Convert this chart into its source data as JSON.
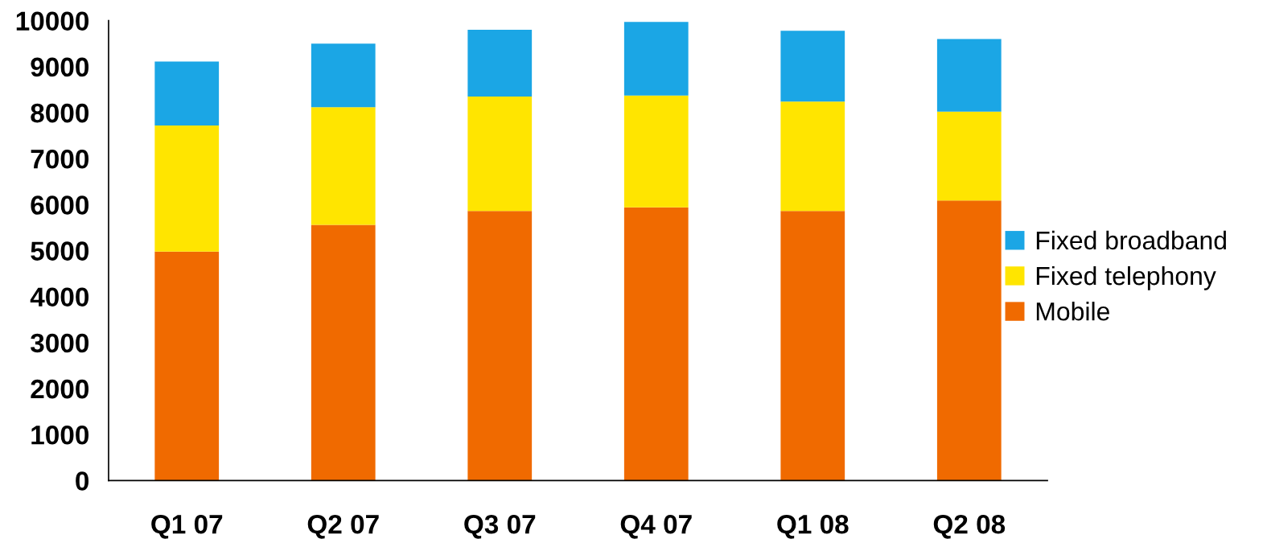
{
  "chart_data": {
    "type": "bar",
    "stacked": true,
    "categories": [
      "Q1 07",
      "Q2 07",
      "Q3 07",
      "Q4 07",
      "Q1 08",
      "Q2 08"
    ],
    "series": [
      {
        "name": "Mobile",
        "color": "#f06a00",
        "values": [
          4980,
          5560,
          5860,
          5940,
          5860,
          6090
        ]
      },
      {
        "name": "Fixed telephony",
        "color": "#ffe500",
        "values": [
          2740,
          2560,
          2490,
          2430,
          2380,
          1930
        ]
      },
      {
        "name": "Fixed broadband",
        "color": "#1ba6e5",
        "values": [
          1390,
          1380,
          1450,
          1600,
          1540,
          1580
        ]
      }
    ],
    "ylim": [
      0,
      10000
    ],
    "yticks": [
      0,
      1000,
      2000,
      3000,
      4000,
      5000,
      6000,
      7000,
      8000,
      9000,
      10000
    ],
    "legend": "right"
  }
}
